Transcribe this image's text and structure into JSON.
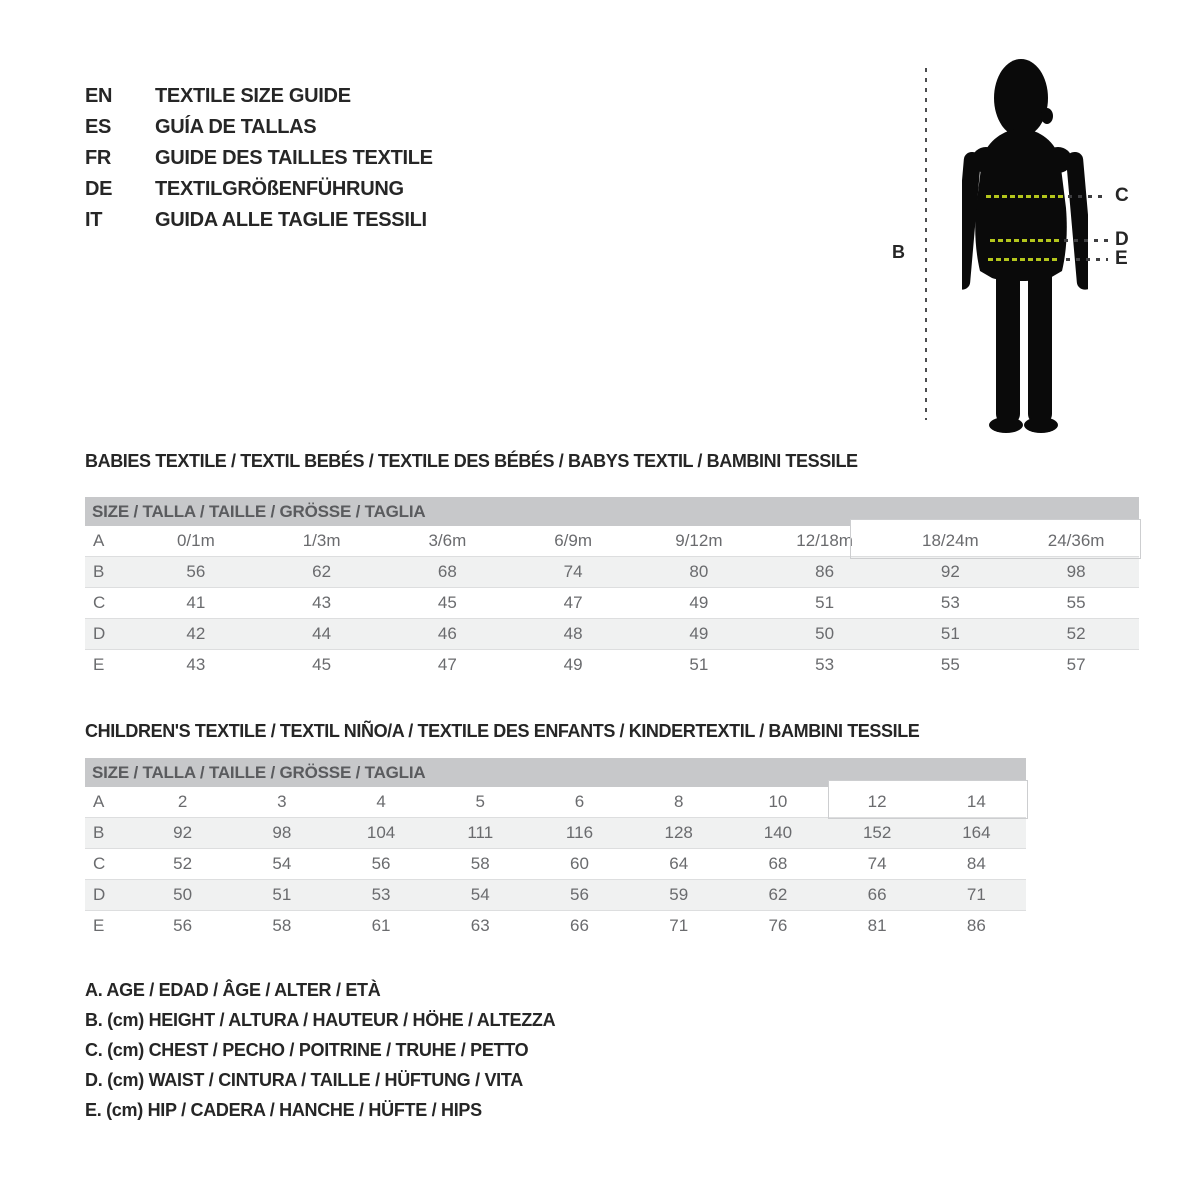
{
  "languages": [
    {
      "code": "EN",
      "label": "TEXTILE SIZE GUIDE"
    },
    {
      "code": "ES",
      "label": "GUÍA DE TALLAS"
    },
    {
      "code": "FR",
      "label": "GUIDE DES TAILLES TEXTILE"
    },
    {
      "code": "DE",
      "label": "TEXTILGRÖßENFÜHRUNG"
    },
    {
      "code": "IT",
      "label": "GUIDA ALLE TAGLIE TESSILI"
    }
  ],
  "figure": {
    "height_label": "B",
    "chest_label": "C",
    "waist_label": "D",
    "hip_label": "E",
    "measure_line_color": "#b4c61c",
    "silhouette_color": "#0a0a0a"
  },
  "babies": {
    "heading": "BABIES TEXTILE / TEXTIL BEBÉS / TEXTILE DES BÉBÉS / BABYS TEXTIL / BAMBINI TESSILE",
    "size_header": "SIZE / TALLA / TAILLE / GRÖSSE / TAGLIA",
    "rows": [
      {
        "label": "A",
        "values": [
          "0/1m",
          "1/3m",
          "3/6m",
          "6/9m",
          "9/12m",
          "12/18m",
          "18/24m",
          "24/36m"
        ]
      },
      {
        "label": "B",
        "values": [
          "56",
          "62",
          "68",
          "74",
          "80",
          "86",
          "92",
          "98"
        ]
      },
      {
        "label": "C",
        "values": [
          "41",
          "43",
          "45",
          "47",
          "49",
          "51",
          "53",
          "55"
        ]
      },
      {
        "label": "D",
        "values": [
          "42",
          "44",
          "46",
          "48",
          "49",
          "50",
          "51",
          "52"
        ]
      },
      {
        "label": "E",
        "values": [
          "43",
          "45",
          "47",
          "49",
          "51",
          "53",
          "55",
          "57"
        ]
      }
    ]
  },
  "children": {
    "heading": "CHILDREN'S TEXTILE / TEXTIL NIÑO/A / TEXTILE DES ENFANTS / KINDERTEXTIL / BAMBINI TESSILE",
    "size_header": "SIZE / TALLA / TAILLE / GRÖSSE / TAGLIA",
    "rows": [
      {
        "label": "A",
        "values": [
          "2",
          "3",
          "4",
          "5",
          "6",
          "8",
          "10",
          "12",
          "14"
        ]
      },
      {
        "label": "B",
        "values": [
          "92",
          "98",
          "104",
          "111",
          "116",
          "128",
          "140",
          "152",
          "164"
        ]
      },
      {
        "label": "C",
        "values": [
          "52",
          "54",
          "56",
          "58",
          "60",
          "64",
          "68",
          "74",
          "84"
        ]
      },
      {
        "label": "D",
        "values": [
          "50",
          "51",
          "53",
          "54",
          "56",
          "59",
          "62",
          "66",
          "71"
        ]
      },
      {
        "label": "E",
        "values": [
          "56",
          "58",
          "61",
          "63",
          "66",
          "71",
          "76",
          "81",
          "86"
        ]
      }
    ]
  },
  "legend": [
    "A. AGE / EDAD / ÂGE / ALTER / ETÀ",
    "B. (cm) HEIGHT / ALTURA / HAUTEUR / HÖHE / ALTEZZA",
    "C. (cm) CHEST / PECHO / POITRINE / TRUHE / PETTO",
    "D. (cm) WAIST / CINTURA / TAILLE / HÜFTUNG / VITA",
    "E. (cm) HIP / CADERA / HANCHE / HÜFTE / HIPS"
  ],
  "colors": {
    "table_header_bg": "#c7c8ca",
    "table_header_text": "#5a5b5e",
    "cell_text": "#6a6b6e",
    "stripe_bg": "#f0f1f1",
    "highlight_border": "#cdced0",
    "heading_text": "#262626"
  }
}
